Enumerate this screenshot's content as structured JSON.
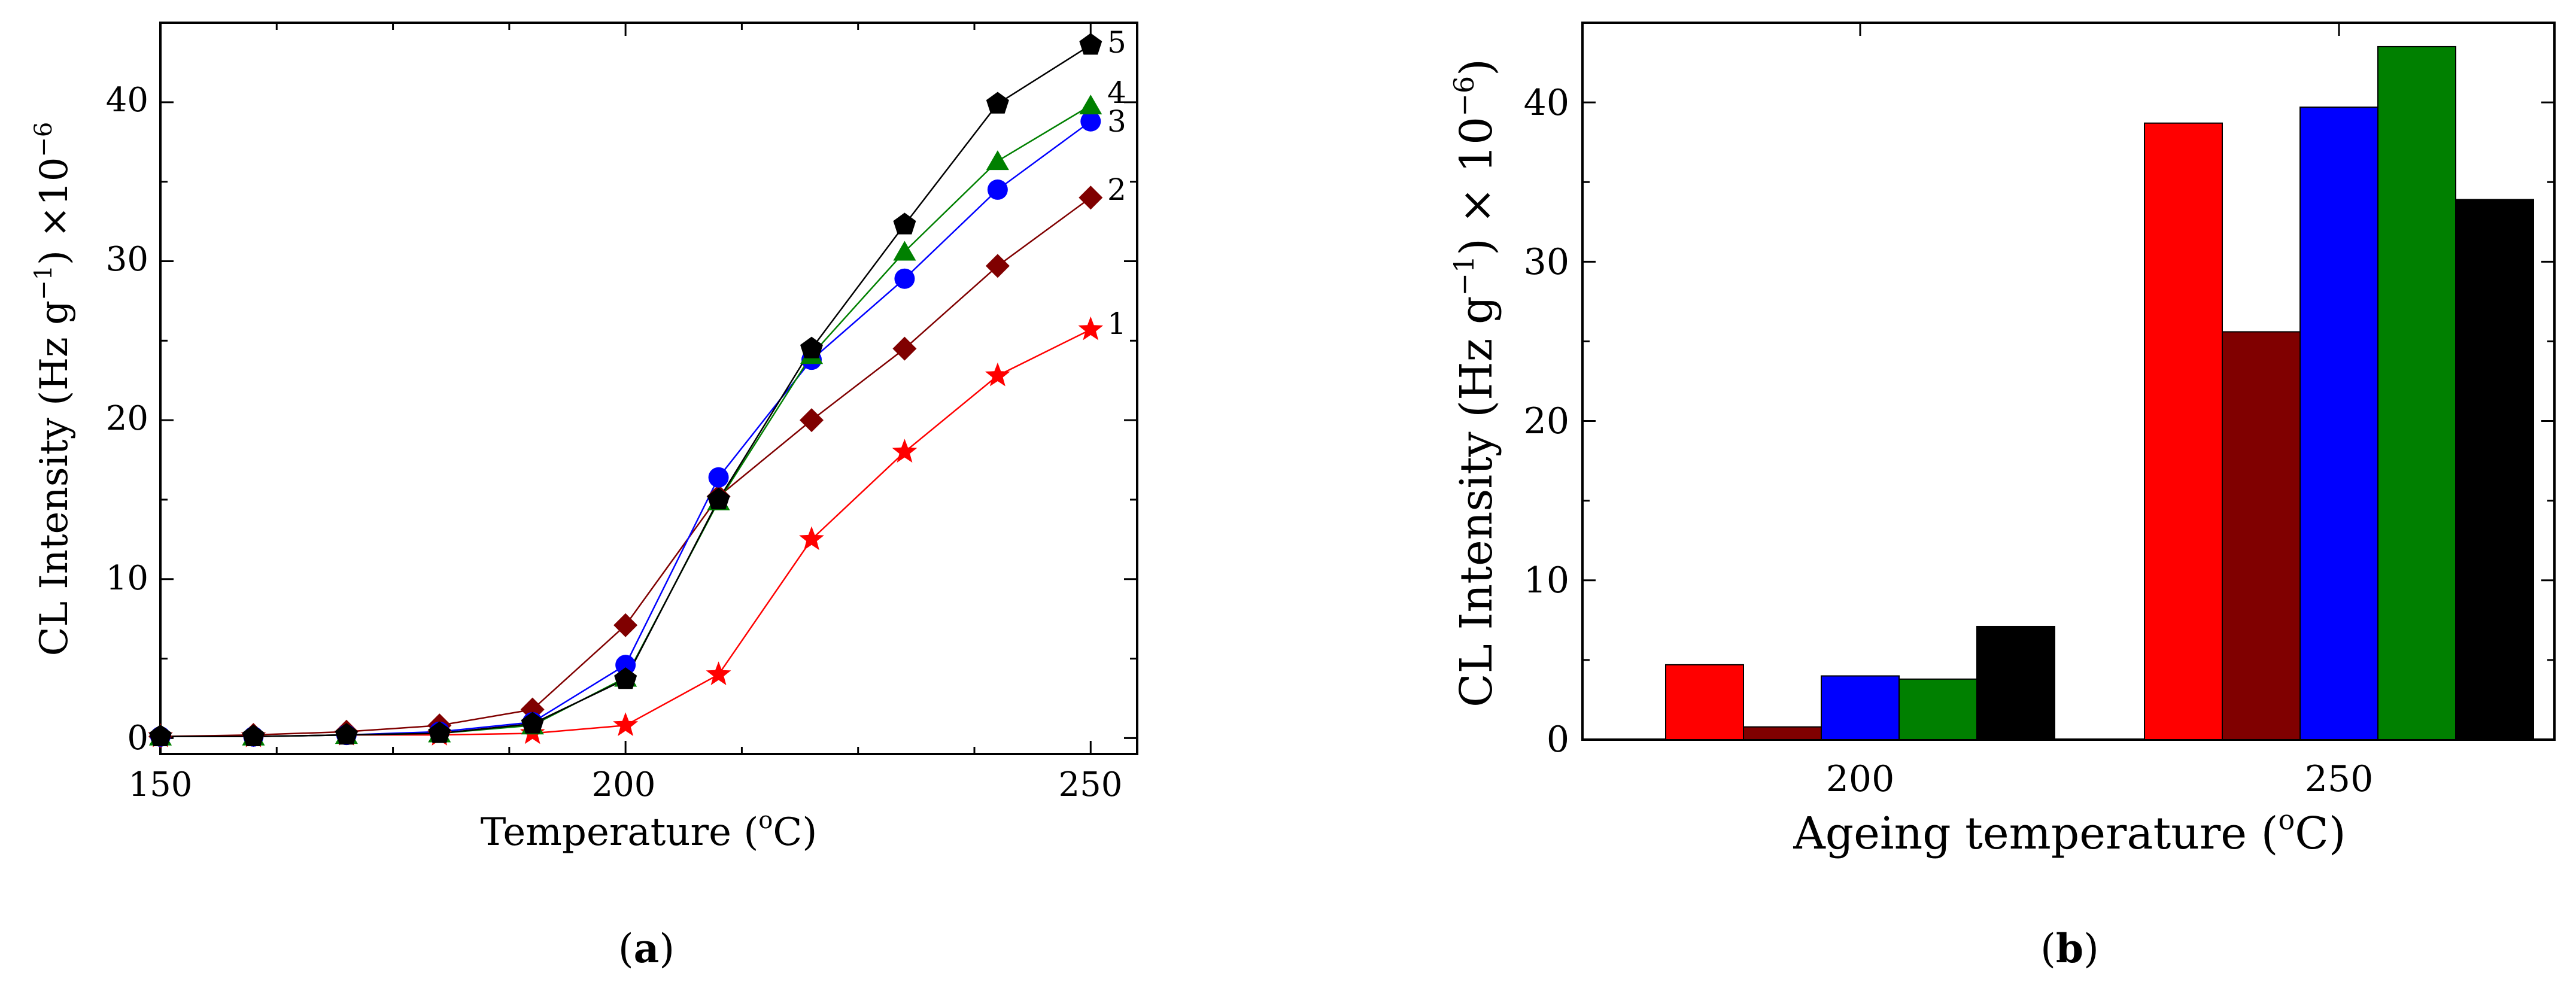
{
  "chart_data": [
    {
      "panel": "(a)",
      "panel_prefix": "(",
      "panel_letter": "a",
      "panel_suffix": ")",
      "type": "line",
      "xlabel_pre": "Temperature (",
      "xlabel_sup": "o",
      "xlabel_post": "C)",
      "ylabel_pre": "CL Intensity (Hz g",
      "ylabel_sup": "−1",
      "ylabel_mid": ") ×10",
      "ylabel_sup2": "−6",
      "xlim": [
        150,
        255
      ],
      "ylim": [
        -1,
        45
      ],
      "xticks": [
        150,
        200,
        250
      ],
      "yticks": [
        0,
        10,
        20,
        30,
        40
      ],
      "x": [
        150,
        160,
        170,
        180,
        190,
        200,
        210,
        220,
        230,
        240,
        250
      ],
      "series": [
        {
          "name": "1",
          "color": "#ff0000",
          "marker": "star",
          "values": [
            0.1,
            0.1,
            0.2,
            0.2,
            0.3,
            0.8,
            4.0,
            12.5,
            18.0,
            22.8,
            25.7
          ]
        },
        {
          "name": "2",
          "color": "#800000",
          "marker": "diamond",
          "values": [
            0.1,
            0.2,
            0.4,
            0.8,
            1.8,
            7.1,
            15.2,
            20.0,
            24.5,
            29.7,
            34.0
          ]
        },
        {
          "name": "3",
          "color": "#0000ff",
          "marker": "circle",
          "values": [
            0.1,
            0.1,
            0.2,
            0.4,
            1.0,
            4.6,
            16.4,
            23.8,
            28.9,
            34.5,
            38.8
          ]
        },
        {
          "name": "4",
          "color": "#008000",
          "marker": "triangle",
          "values": [
            0.1,
            0.1,
            0.2,
            0.3,
            0.8,
            3.8,
            14.9,
            24.1,
            30.6,
            36.3,
            39.8
          ]
        },
        {
          "name": "5",
          "color": "#000000",
          "marker": "pentagon",
          "values": [
            0.1,
            0.1,
            0.2,
            0.3,
            0.9,
            3.7,
            15.0,
            24.5,
            32.3,
            39.9,
            43.6
          ]
        }
      ]
    },
    {
      "panel": "(b)",
      "panel_prefix": "(",
      "panel_letter": "b",
      "panel_suffix": ")",
      "type": "bar",
      "xlabel_pre": "Ageing temperature (",
      "xlabel_sup": "o",
      "xlabel_post": "C)",
      "ylabel_pre": "CL Intensity (Hz g",
      "ylabel_sup": "−1",
      "ylabel_mid": ") × 10",
      "ylabel_sup2": "−6",
      "ylabel_post": ")",
      "categories": [
        "200",
        "250"
      ],
      "ylim": [
        0,
        45
      ],
      "yticks": [
        0,
        10,
        20,
        30,
        40
      ],
      "series": [
        {
          "color": "#ff0000",
          "values": [
            4.7,
            38.7
          ]
        },
        {
          "color": "#800000",
          "values": [
            0.8,
            25.6
          ]
        },
        {
          "color": "#0000ff",
          "values": [
            4.0,
            39.7
          ]
        },
        {
          "color": "#008000",
          "values": [
            3.8,
            43.5
          ]
        },
        {
          "color": "#000000",
          "values": [
            7.1,
            33.9
          ]
        }
      ]
    }
  ]
}
